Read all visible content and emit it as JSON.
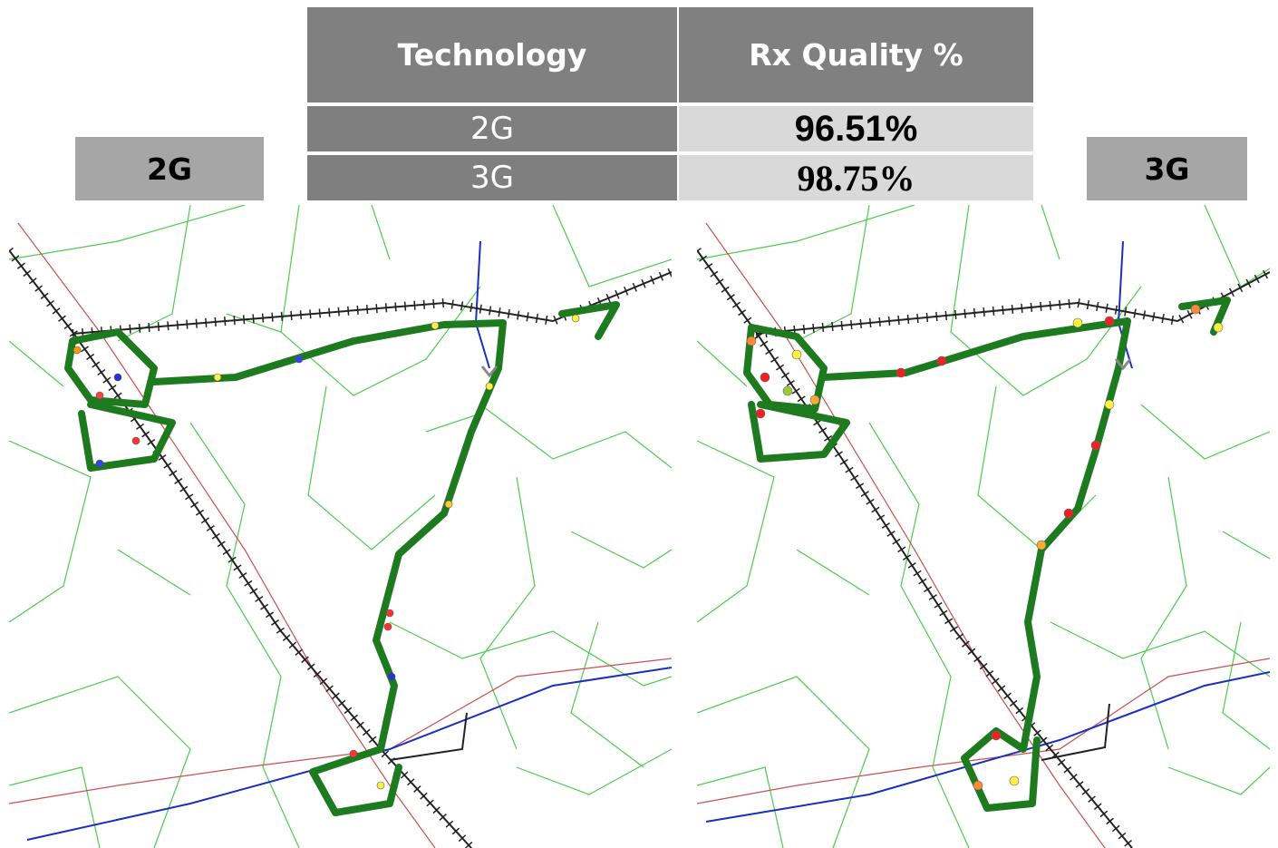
{
  "table": {
    "header": [
      "Technology",
      "Rx Quality %"
    ],
    "rows": [
      [
        "2G",
        "96.51%"
      ],
      [
        "3G",
        "98.75%"
      ]
    ]
  },
  "maps": [
    {
      "label": "2G"
    },
    {
      "label": "3G"
    }
  ]
}
